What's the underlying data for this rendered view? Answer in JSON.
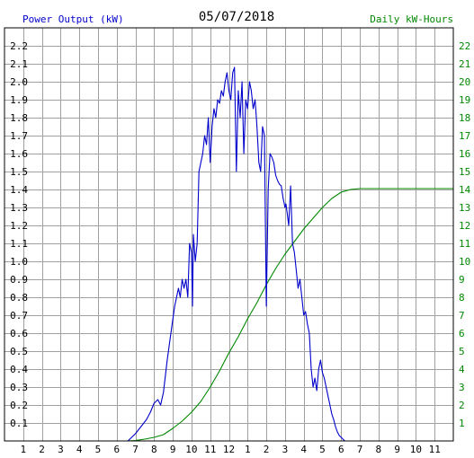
{
  "chart_data": {
    "type": "line",
    "title": "05/07/2018",
    "left_axis_label": "Power Output (kW)",
    "right_axis_label": "Daily kW-Hours",
    "x_tick_labels": [
      "1",
      "2",
      "3",
      "4",
      "5",
      "6",
      "7",
      "8",
      "9",
      "10",
      "11",
      "12",
      "1",
      "2",
      "3",
      "4",
      "5",
      "6",
      "7",
      "8",
      "9",
      "10",
      "11"
    ],
    "x_range_hours": [
      0,
      24
    ],
    "left_ylim": [
      0,
      2.3
    ],
    "left_ticks": [
      "0.1",
      "0.2",
      "0.3",
      "0.4",
      "0.5",
      "0.6",
      "0.7",
      "0.8",
      "0.9",
      "1.0",
      "1.1",
      "1.2",
      "1.3",
      "1.4",
      "1.5",
      "1.6",
      "1.7",
      "1.8",
      "1.9",
      "2.0",
      "2.1",
      "2.2"
    ],
    "right_ylim": [
      0,
      23
    ],
    "right_ticks": [
      "1",
      "2",
      "3",
      "4",
      "5",
      "6",
      "7",
      "8",
      "9",
      "10",
      "11",
      "12",
      "13",
      "14",
      "15",
      "16",
      "17",
      "18",
      "19",
      "20",
      "21",
      "22"
    ],
    "grid": true,
    "colors": {
      "power": "#0000cc",
      "energy": "#008800",
      "left_label": "#0000cc",
      "right_label": "#008800",
      "grid": "#a0a0a0"
    },
    "series": [
      {
        "key": "power",
        "axis": "left",
        "x": [
          6.6,
          7.0,
          7.3,
          7.6,
          7.8,
          8.0,
          8.2,
          8.35,
          8.5,
          8.7,
          8.9,
          9.1,
          9.2,
          9.3,
          9.4,
          9.5,
          9.6,
          9.7,
          9.8,
          9.9,
          10.0,
          10.05,
          10.1,
          10.2,
          10.3,
          10.4,
          10.5,
          10.6,
          10.7,
          10.8,
          10.9,
          11.0,
          11.1,
          11.2,
          11.3,
          11.4,
          11.5,
          11.6,
          11.7,
          11.8,
          11.9,
          12.0,
          12.1,
          12.2,
          12.3,
          12.4,
          12.5,
          12.6,
          12.7,
          12.8,
          12.9,
          13.0,
          13.1,
          13.2,
          13.3,
          13.4,
          13.5,
          13.6,
          13.7,
          13.8,
          13.9,
          14.0,
          14.1,
          14.2,
          14.3,
          14.4,
          14.5,
          14.6,
          14.7,
          14.8,
          14.9,
          15.0,
          15.05,
          15.1,
          15.2,
          15.3,
          15.4,
          15.5,
          15.6,
          15.7,
          15.8,
          15.9,
          16.0,
          16.1,
          16.2,
          16.3,
          16.4,
          16.5,
          16.6,
          16.7,
          16.8,
          16.9,
          17.0,
          17.1,
          17.2,
          17.3,
          17.4,
          17.5,
          17.6,
          17.7,
          17.8,
          17.9,
          18.0,
          18.1,
          18.2,
          18.3,
          18.4,
          18.5,
          18.6,
          18.7,
          18.8,
          18.9,
          19.0,
          19.2,
          19.4,
          19.6,
          19.8,
          20.0,
          20.2
        ],
        "y": [
          0.0,
          0.04,
          0.08,
          0.12,
          0.16,
          0.21,
          0.23,
          0.2,
          0.27,
          0.45,
          0.6,
          0.75,
          0.8,
          0.85,
          0.8,
          0.9,
          0.85,
          0.9,
          0.8,
          1.1,
          1.05,
          0.75,
          1.15,
          1.0,
          1.1,
          1.5,
          1.55,
          1.6,
          1.7,
          1.65,
          1.8,
          1.55,
          1.75,
          1.85,
          1.8,
          1.9,
          1.88,
          1.95,
          1.92,
          2.0,
          2.05,
          1.95,
          1.9,
          2.05,
          2.08,
          1.5,
          1.95,
          1.8,
          2.0,
          1.6,
          1.9,
          1.85,
          2.0,
          1.95,
          1.85,
          1.9,
          1.75,
          1.55,
          1.5,
          1.75,
          1.7,
          0.75,
          1.4,
          1.6,
          1.58,
          1.55,
          1.48,
          1.45,
          1.43,
          1.42,
          1.35,
          1.3,
          1.32,
          1.28,
          1.2,
          1.42,
          1.1,
          1.05,
          0.95,
          0.85,
          0.9,
          0.8,
          0.7,
          0.72,
          0.65,
          0.6,
          0.4,
          0.3,
          0.35,
          0.28,
          0.4,
          0.45,
          0.38,
          0.35,
          0.3,
          0.25,
          0.2,
          0.15,
          0.12,
          0.08,
          0.05,
          0.03,
          0.02,
          0.01,
          0.0,
          0.0,
          0.0,
          0.0,
          0.0,
          0.0,
          0.0,
          0.0,
          0.0,
          0.0,
          0.0,
          0.0,
          0.0,
          0.0,
          0.0
        ],
        "trim_after_hour": 20.2
      },
      {
        "key": "energy",
        "axis": "right",
        "x": [
          6.6,
          7.0,
          7.5,
          8.0,
          8.5,
          9.0,
          9.5,
          10.0,
          10.5,
          11.0,
          11.5,
          12.0,
          12.5,
          13.0,
          13.5,
          14.0,
          14.5,
          15.0,
          15.5,
          16.0,
          16.5,
          17.0,
          17.5,
          18.0,
          18.5,
          19.0,
          19.5,
          20.0,
          21.0,
          22.0,
          23.0,
          24.0
        ],
        "y": [
          0.0,
          0.02,
          0.1,
          0.2,
          0.35,
          0.7,
          1.1,
          1.6,
          2.2,
          3.0,
          3.9,
          4.9,
          5.8,
          6.8,
          7.7,
          8.7,
          9.6,
          10.4,
          11.1,
          11.8,
          12.4,
          13.0,
          13.5,
          13.85,
          14.0,
          14.05,
          14.05,
          14.05,
          14.05,
          14.05,
          14.05,
          14.05
        ]
      }
    ]
  }
}
